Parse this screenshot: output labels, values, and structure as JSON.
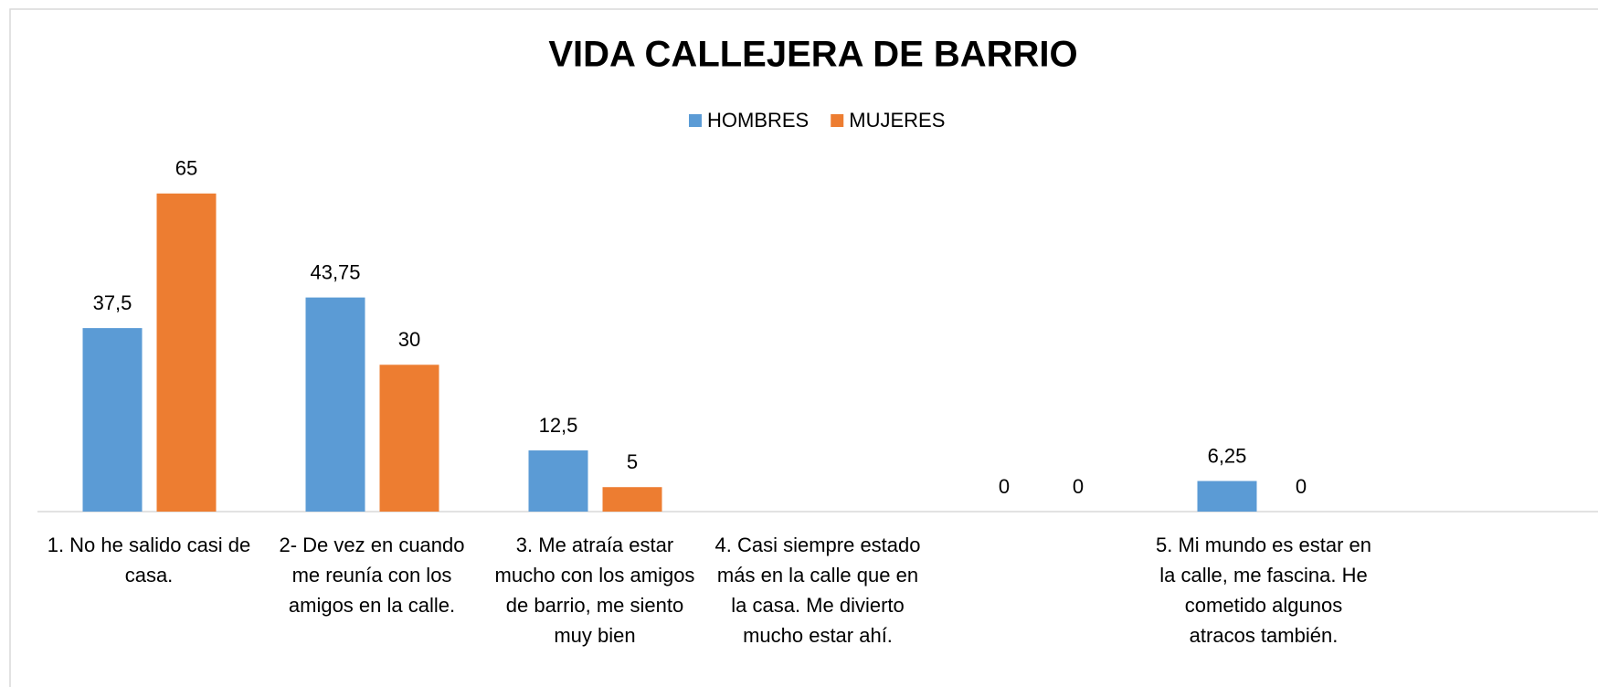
{
  "chart_data": {
    "type": "bar",
    "title": "VIDA CALLEJERA DE BARRIO",
    "categories": [
      "1.\tNo he salido casi de casa.",
      "2- De vez en cuando me reunía con los amigos en la calle.",
      "3. Me atraía estar mucho con los amigos de barrio, me siento muy bien",
      "4. Casi siempre estado más en la calle que en la casa. Me divierto mucho estar ahí.",
      null,
      "5. Mi mundo es estar en la calle, me fascina. He cometido algunos atracos también.",
      null
    ],
    "series": [
      {
        "name": "HOMBRES",
        "color": "#5b9bd5",
        "values": [
          37.5,
          43.75,
          12.5,
          null,
          0,
          6.25,
          null
        ],
        "value_labels": [
          "37,5",
          "43,75",
          "12,5",
          null,
          "0",
          "6,25",
          null
        ]
      },
      {
        "name": "MUJERES",
        "color": "#ed7d31",
        "values": [
          65,
          30,
          5,
          null,
          0,
          0,
          null
        ]
      }
    ],
    "ylim": [
      0,
      70
    ],
    "legend": "top"
  }
}
